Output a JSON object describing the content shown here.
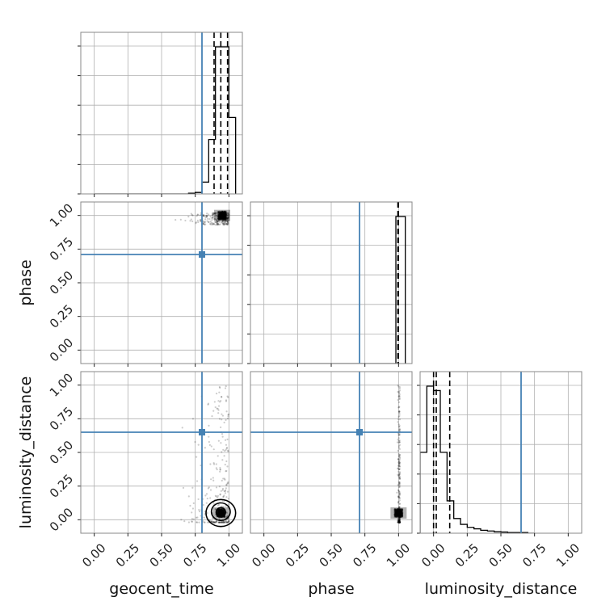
{
  "chart_data": {
    "type": "scatter",
    "subtype": "corner",
    "parameters": [
      "geocent_time",
      "phase",
      "luminosity_distance"
    ],
    "xlabels": [
      "geocent_time",
      "phase",
      "luminosity_distance"
    ],
    "ylabels": [
      "",
      "phase",
      "luminosity_distance"
    ],
    "ticks": [
      0.0,
      0.25,
      0.5,
      0.75,
      1.0
    ],
    "tick_labels": [
      "0.00",
      "0.25",
      "0.50",
      "0.75",
      "1.00"
    ],
    "range": [
      -0.1,
      1.1
    ],
    "grid": true,
    "truths": {
      "geocent_time": 0.8,
      "phase": 0.71,
      "luminosity_distance": 0.65
    },
    "truth_color": "#4682b4",
    "quantiles": {
      "geocent_time": [
        0.89,
        0.94,
        0.99
      ],
      "phase": [
        0.995,
        0.999
      ]
    },
    "hist1d": {
      "geocent_time": {
        "edges": [
          0.0,
          0.05,
          0.1,
          0.15,
          0.2,
          0.25,
          0.3,
          0.35,
          0.4,
          0.45,
          0.5,
          0.55,
          0.6,
          0.65,
          0.7,
          0.75,
          0.8,
          0.85,
          0.9,
          0.95,
          1.0,
          1.05
        ],
        "counts": [
          0,
          0,
          0,
          0,
          0,
          0,
          0,
          0,
          0,
          0,
          0,
          0,
          0,
          0,
          0.005,
          0.01,
          0.08,
          0.37,
          1.0,
          1.0,
          0.52
        ]
      },
      "phase": {
        "edges": [
          0.0,
          0.05,
          0.1,
          0.15,
          0.2,
          0.25,
          0.3,
          0.35,
          0.4,
          0.45,
          0.5,
          0.55,
          0.6,
          0.65,
          0.7,
          0.75,
          0.8,
          0.85,
          0.9,
          0.95,
          0.98,
          1.05
        ],
        "counts": [
          0,
          0,
          0,
          0,
          0,
          0,
          0,
          0,
          0,
          0,
          0,
          0,
          0,
          0,
          0,
          0,
          0,
          0,
          0,
          0,
          1.0
        ]
      },
      "luminosity_distance": {
        "edges": [
          -0.1,
          -0.05,
          0.0,
          0.05,
          0.1,
          0.15,
          0.2,
          0.25,
          0.3,
          0.35,
          0.4,
          0.45,
          0.5,
          0.55,
          0.6,
          0.65,
          0.7,
          0.75
        ],
        "counts": [
          0.55,
          1.0,
          0.97,
          0.55,
          0.22,
          0.1,
          0.06,
          0.04,
          0.03,
          0.02,
          0.015,
          0.01,
          0.008,
          0.005,
          0.005,
          0.005,
          0.0
        ]
      }
    },
    "pairs": [
      {
        "x": "geocent_time",
        "y": "phase",
        "peak": [
          0.95,
          1.0
        ],
        "spread_x": [
          0.55,
          1.0
        ],
        "spread_y": [
          0.93,
          1.02
        ]
      },
      {
        "x": "geocent_time",
        "y": "luminosity_distance",
        "peak": [
          0.94,
          0.05
        ],
        "spread_x": [
          0.55,
          1.0
        ],
        "spread_y": [
          -0.02,
          1.0
        ],
        "contour_levels": [
          {
            "cx": 0.94,
            "cy": 0.05,
            "rx": 0.11,
            "ry": 0.1
          },
          {
            "cx": 0.94,
            "cy": 0.06,
            "rx": 0.07,
            "ry": 0.065
          },
          {
            "cx": 0.94,
            "cy": 0.055,
            "rx": 0.035,
            "ry": 0.035
          }
        ]
      },
      {
        "x": "phase",
        "y": "luminosity_distance",
        "peak": [
          1.0,
          0.05
        ],
        "spread_x": [
          0.985,
          1.01
        ],
        "spread_y": [
          -0.02,
          1.0
        ]
      }
    ]
  }
}
